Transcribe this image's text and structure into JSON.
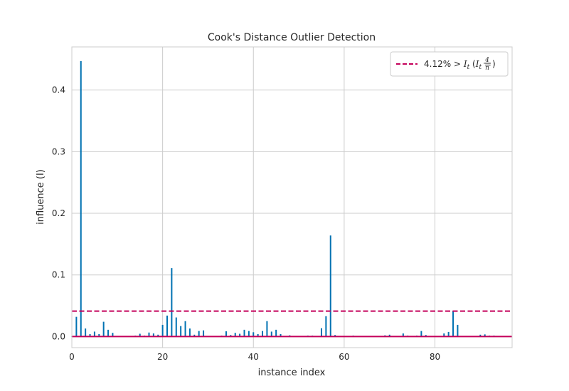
{
  "chart_data": {
    "type": "stem",
    "title": "Cook's Distance Outlier Detection",
    "xlabel": "instance index",
    "ylabel": "influence (I)",
    "xlim": [
      0,
      97
    ],
    "ylim": [
      -0.018,
      0.47
    ],
    "xticks": [
      "0",
      "20",
      "40",
      "60",
      "80"
    ],
    "yticks": [
      "0.0",
      "0.1",
      "0.2",
      "0.3",
      "0.4"
    ],
    "grid": true,
    "legend": {
      "placement": "top-right",
      "label_prefix": "4.12% > ",
      "label_math": "I_t (I_t = 4/n)"
    },
    "threshold": 0.0412,
    "colors": {
      "stems": "#0072b2",
      "threshold": "#c4005a",
      "baseline": "#c4005a",
      "grid": "#cccccc",
      "spine": "#cccccc"
    },
    "series": [
      {
        "x": [
          0,
          1,
          2,
          3,
          4,
          5,
          6,
          7,
          8,
          9,
          10,
          11,
          12,
          13,
          14,
          15,
          16,
          17,
          18,
          19,
          20,
          21,
          22,
          23,
          24,
          25,
          26,
          27,
          28,
          29,
          30,
          31,
          32,
          33,
          34,
          35,
          36,
          37,
          38,
          39,
          40,
          41,
          42,
          43,
          44,
          45,
          46,
          47,
          48,
          49,
          50,
          51,
          52,
          53,
          54,
          55,
          56,
          57,
          58,
          59,
          60,
          61,
          62,
          63,
          64,
          65,
          66,
          67,
          68,
          69,
          70,
          71,
          72,
          73,
          74,
          75,
          76,
          77,
          78,
          79,
          80,
          81,
          82,
          83,
          84,
          85,
          86,
          87,
          88,
          89,
          90,
          91,
          92,
          93,
          94,
          95,
          96
        ],
        "values": [
          0.0005,
          0.032,
          0.447,
          0.013,
          0.004,
          0.008,
          0.004,
          0.024,
          0.011,
          0.006,
          0.001,
          0.0005,
          0.0005,
          0.0005,
          0.0015,
          0.0045,
          0.0015,
          0.0065,
          0.005,
          0.003,
          0.019,
          0.034,
          0.111,
          0.031,
          0.017,
          0.025,
          0.013,
          0.003,
          0.009,
          0.01,
          0.0005,
          0.0005,
          0.0005,
          0.0015,
          0.0085,
          0.0025,
          0.006,
          0.0045,
          0.011,
          0.009,
          0.007,
          0.004,
          0.009,
          0.025,
          0.008,
          0.011,
          0.004,
          0.0005,
          0.002,
          0.0005,
          0.0005,
          0.0005,
          0.0015,
          0.0015,
          0.0005,
          0.0135,
          0.033,
          0.164,
          0.0025,
          0.0005,
          0.0005,
          0.0005,
          0.0015,
          0.0005,
          0.0005,
          0.0005,
          0.0005,
          0.0005,
          0.0005,
          0.002,
          0.003,
          0.0005,
          0.0005,
          0.005,
          0.0015,
          0.0005,
          0.0015,
          0.009,
          0.0025,
          0.0005,
          0.0005,
          0.0005,
          0.005,
          0.0075,
          0.042,
          0.019,
          0.0005,
          0.0005,
          0.0005,
          0.0005,
          0.003,
          0.0035,
          0.0015,
          0.0015,
          0.0005,
          0.0005,
          0.0005
        ]
      }
    ]
  }
}
